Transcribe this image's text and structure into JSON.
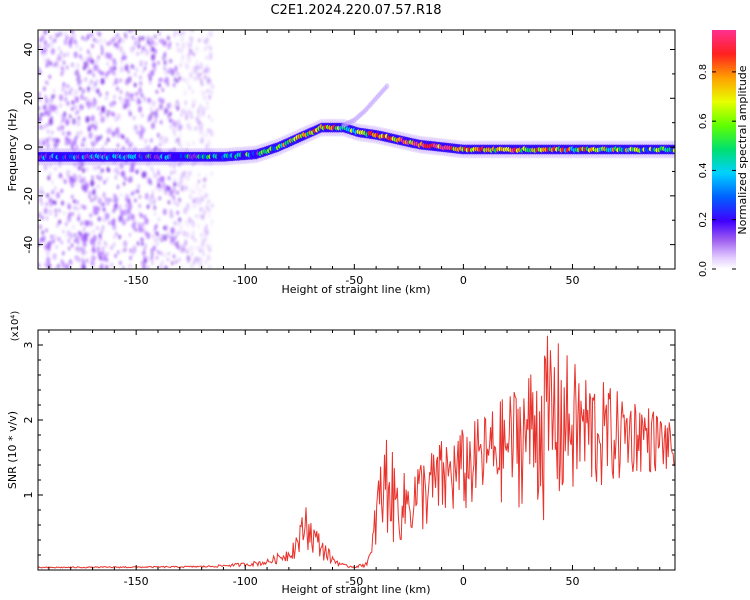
{
  "title": "C2E1.2024.220.07.57.R18",
  "colors": {
    "snr_line": "#e8322b",
    "background_blob": "#a35cff",
    "colormap": [
      "#ffffff",
      "#cfa8ff",
      "#8a2be2",
      "#3a00ff",
      "#0050ff",
      "#00c8ff",
      "#00e060",
      "#78ff00",
      "#e8ff00",
      "#ffa000",
      "#ff2020",
      "#ff4080"
    ]
  },
  "chart_data": [
    {
      "type": "heatmap",
      "title": "",
      "xlabel": "Height of straight line (km)",
      "ylabel": "Frequency (Hz)",
      "xlim": [
        -195,
        97
      ],
      "ylim": [
        -50,
        48
      ],
      "xticks": [
        -150,
        -100,
        -50,
        0,
        50
      ],
      "xtick_labels": [
        "-150",
        "-100",
        "-50",
        "0",
        "50"
      ],
      "yticks": [
        -40,
        -20,
        0,
        20,
        40
      ],
      "ytick_labels": [
        "-40",
        "-20",
        "0",
        "20",
        "40"
      ],
      "colorbar": {
        "label": "Normalized spectral amplitude",
        "range": [
          0,
          0.97
        ],
        "ticks": [
          0.0,
          0.2,
          0.4,
          0.6,
          0.8
        ],
        "tick_labels": [
          "0.0",
          "0.2",
          "0.4",
          "0.6",
          "0.8"
        ]
      },
      "ridge": {
        "x": [
          -195,
          -130,
          -110,
          -95,
          -85,
          -75,
          -65,
          -55,
          -48,
          -40,
          -30,
          -20,
          -10,
          0,
          20,
          40,
          60,
          80,
          97
        ],
        "y": [
          -4,
          -4,
          -4,
          -3,
          0,
          4,
          8,
          8,
          6,
          5,
          3,
          1,
          0,
          -1,
          -1,
          -1,
          -1,
          -1,
          -1
        ],
        "intensity": [
          0.25,
          0.3,
          0.45,
          0.4,
          0.6,
          0.7,
          0.75,
          0.6,
          0.55,
          0.8,
          0.85,
          0.9,
          0.95,
          0.8,
          0.75,
          0.7,
          0.65,
          0.6,
          0.55
        ]
      },
      "secondary_branch": {
        "x": [
          -55,
          -50,
          -45,
          -40,
          -35
        ],
        "y": [
          9,
          11,
          15,
          20,
          25
        ]
      },
      "noise_region": {
        "x_from": -195,
        "x_to": -120,
        "y_from": -50,
        "y_to": 48
      }
    },
    {
      "type": "line",
      "title": "",
      "xlabel": "Height of straight line (km)",
      "ylabel": "SNR (10 * v/v)",
      "y_multiplier": "(x10⁴)",
      "xlim": [
        -195,
        97
      ],
      "ylim": [
        0,
        3.2
      ],
      "xticks": [
        -150,
        -100,
        -50,
        0,
        50
      ],
      "xtick_labels": [
        "-150",
        "-100",
        "-50",
        "0",
        "50"
      ],
      "yticks": [
        1,
        2,
        3
      ],
      "ytick_labels": [
        "1",
        "2",
        "3"
      ],
      "envelope": {
        "x": [
          -195,
          -130,
          -115,
          -100,
          -90,
          -80,
          -75,
          -72,
          -70,
          -65,
          -60,
          -55,
          -50,
          -45,
          -42,
          -40,
          -35,
          -32,
          -30,
          -25,
          -20,
          -15,
          -10,
          -5,
          0,
          10,
          20,
          30,
          40,
          50,
          60,
          70,
          80,
          90,
          97
        ],
        "y": [
          0.04,
          0.05,
          0.06,
          0.1,
          0.14,
          0.3,
          0.6,
          0.95,
          0.7,
          0.45,
          0.2,
          0.08,
          0.05,
          0.1,
          0.3,
          1.2,
          1.9,
          1.5,
          1.25,
          1.35,
          1.5,
          1.6,
          1.75,
          1.8,
          1.9,
          2.1,
          2.35,
          2.7,
          3.2,
          2.8,
          2.6,
          2.4,
          2.3,
          2.1,
          1.9
        ],
        "floor_ratio": [
          0.6,
          0.6,
          0.55,
          0.45,
          0.4,
          0.35,
          0.3,
          0.3,
          0.3,
          0.3,
          0.3,
          0.4,
          0.5,
          0.4,
          0.3,
          0.15,
          0.2,
          0.2,
          0.25,
          0.25,
          0.3,
          0.3,
          0.3,
          0.35,
          0.35,
          0.4,
          0.35,
          0.3,
          0.15,
          0.3,
          0.35,
          0.45,
          0.55,
          0.6,
          0.65
        ]
      }
    }
  ]
}
